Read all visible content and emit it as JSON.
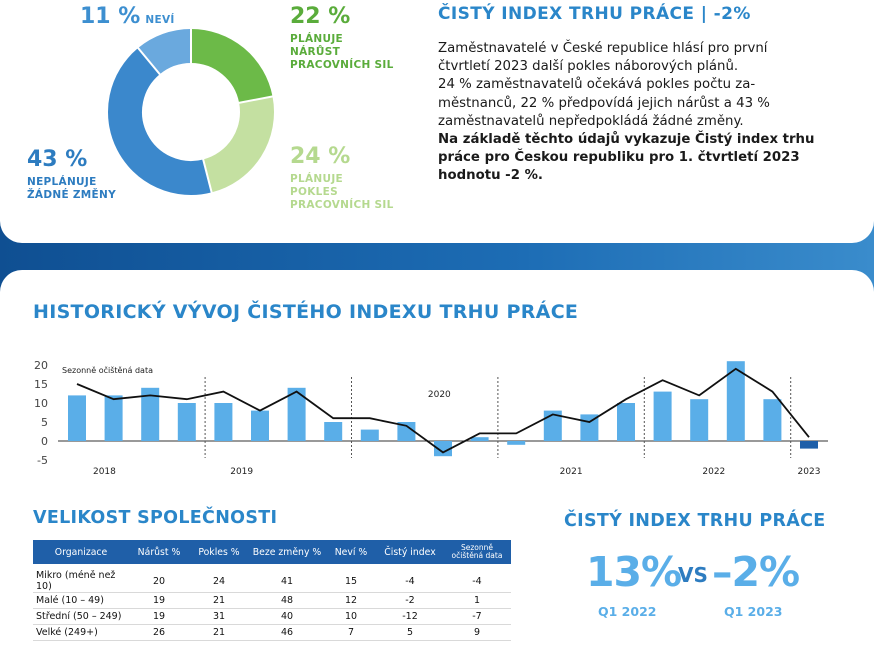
{
  "donut": {
    "segments": [
      {
        "key": "neviem",
        "pct_value": 11,
        "pct": "11 %",
        "label": "NEVÍ",
        "color": "#6aa9de"
      },
      {
        "key": "narust",
        "pct_value": 22,
        "pct": "22 %",
        "label_lines": [
          "PLÁNUJE",
          "NÁRŮST",
          "PRACOVNÍCH SIL"
        ],
        "color": "#6cba48"
      },
      {
        "key": "pokles",
        "pct_value": 24,
        "pct": "24 %",
        "label_lines": [
          "PLÁNUJE",
          "POKLES",
          "PRACOVNÍCH SIL"
        ],
        "color": "#c4e0a1"
      },
      {
        "key": "zadne",
        "pct_value": 43,
        "pct": "43 %",
        "label_lines": [
          "NEPLÁNUJE",
          "ŽÁDNÉ ZMĚNY"
        ],
        "color": "#3b88cc"
      }
    ]
  },
  "summary": {
    "title": "ČISTÝ INDEX TRHU PRÁCE | -2%",
    "lines": [
      "Zaměstnavatelé v České republice hlásí pro první",
      "čtvrtletí 2023 další pokles náborových plánů.",
      "24 % zaměstnavatelů očekává pokles počtu za-",
      "městnanců, 22 % předpovídá jejich nárůst a 43 %",
      "zaměstnavatelů nepředpokládá žádné změny."
    ],
    "bold_lines": [
      "Na základě těchto údajů vykazuje Čistý index trhu",
      "práce pro Českou republiku pro 1. čtvrtletí 2023",
      "hodnotu -2 %."
    ]
  },
  "history": {
    "title": "HISTORICKÝ VÝVOJ ČISTÉHO INDEXU TRHU PRÁCE"
  },
  "chart_data": {
    "type": "bar",
    "title": "HISTORICKÝ VÝVOJ ČISTÉHO INDEXU TRHU PRÁCE",
    "legend_note": "Sezonně očištěná data",
    "ylim": [
      -5,
      20
    ],
    "yticks": [
      "20",
      "15",
      "10",
      "5",
      "0",
      "-5"
    ],
    "year_labels": [
      "2018",
      "2019",
      "2020",
      "2021",
      "2022",
      "2023"
    ],
    "x": [
      "2018 Q1",
      "2018 Q2",
      "2018 Q3",
      "2018 Q4",
      "2019 Q1",
      "2019 Q2",
      "2019 Q3",
      "2019 Q4",
      "2020 Q1",
      "2020 Q2",
      "2020 Q3",
      "2020 Q4",
      "2021 Q1",
      "2021 Q2",
      "2021 Q3",
      "2021 Q4",
      "2022 Q1",
      "2022 Q2",
      "2022 Q3",
      "2022 Q4",
      "2023 Q1"
    ],
    "series": [
      {
        "name": "Čistý index",
        "kind": "bar",
        "values": [
          12,
          12,
          14,
          10,
          10,
          8,
          14,
          5,
          3,
          5,
          -4,
          1,
          -1,
          8,
          7,
          10,
          13,
          11,
          21,
          11,
          -2
        ]
      },
      {
        "name": "Sezonně očištěná data",
        "kind": "line",
        "values": [
          15,
          11,
          12,
          11,
          13,
          8,
          13,
          6,
          6,
          4,
          -3,
          2,
          2,
          7,
          5,
          11,
          16,
          12,
          19,
          13,
          1
        ]
      }
    ],
    "bar_color": "#5aaee8",
    "highlight_color": "#1f5fa8",
    "line_color": "#111111"
  },
  "company_size": {
    "title": "VELIKOST SPOLEČNOSTI",
    "headers": [
      "Organizace",
      "Nárůst %",
      "Pokles %",
      "Beze změny %",
      "Neví %",
      "Čistý index",
      "Sezonně očištěná data"
    ],
    "rows": [
      [
        "Mikro (méně než 10)",
        "20",
        "24",
        "41",
        "15",
        "-4",
        "-4"
      ],
      [
        "Malé (10 – 49)",
        "19",
        "21",
        "48",
        "12",
        "-2",
        "1"
      ],
      [
        "Střední (50 – 249)",
        "19",
        "31",
        "40",
        "10",
        "-12",
        "-7"
      ],
      [
        "Velké (249+)",
        "26",
        "21",
        "46",
        "7",
        "5",
        "9"
      ]
    ]
  },
  "index_compare": {
    "title": "ČISTÝ INDEX TRHU PRÁCE",
    "left_value": "13%",
    "vs": "VS",
    "right_value": "–2%",
    "left_period": "Q1 2022",
    "right_period": "Q1 2023"
  }
}
